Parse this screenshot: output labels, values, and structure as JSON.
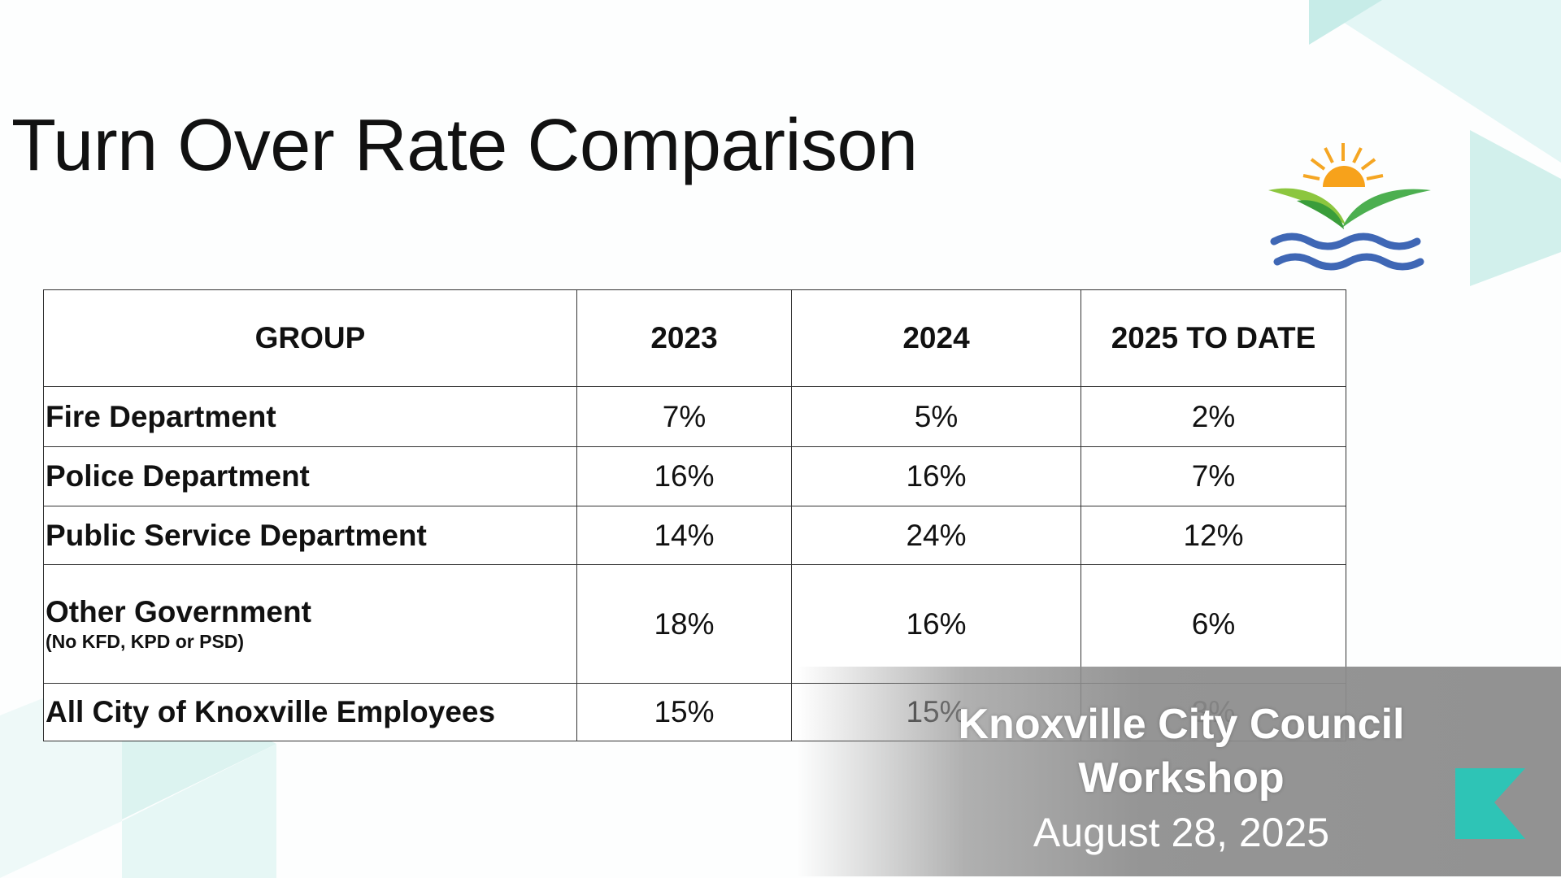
{
  "slide": {
    "title": "Turn Over Rate Comparison",
    "table": {
      "headers": [
        "GROUP",
        "2023",
        "2024",
        "2025 TO DATE"
      ],
      "rows": [
        {
          "group": "Fire Department",
          "values": [
            "7%",
            "5%",
            "2%"
          ]
        },
        {
          "group": "Police Department",
          "values": [
            "16%",
            "16%",
            "7%"
          ]
        },
        {
          "group": "Public Service Department",
          "values": [
            "14%",
            "24%",
            "12%"
          ]
        },
        {
          "group": "Other Government",
          "note": "(No KFD, KPD or PSD)",
          "values": [
            "18%",
            "16%",
            "6%"
          ]
        },
        {
          "group": "All City of Knoxville Employees",
          "values": [
            "15%",
            "15%",
            "3%"
          ]
        }
      ]
    }
  },
  "overlay": {
    "title_lines": [
      "Knoxville City Council",
      "Workshop"
    ],
    "date": "August 28, 2025"
  }
}
